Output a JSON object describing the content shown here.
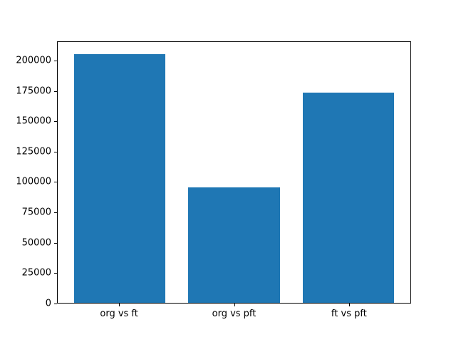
{
  "chart_data": {
    "type": "bar",
    "categories": [
      "org vs ft",
      "org vs pft",
      "ft vs pft"
    ],
    "values": [
      205500,
      95500,
      174000
    ],
    "title": "",
    "xlabel": "",
    "ylabel": "",
    "ylim": [
      0,
      215800
    ],
    "xlim": [
      -0.54,
      2.54
    ],
    "bar_width": 0.8,
    "yticks": [
      0,
      25000,
      50000,
      75000,
      100000,
      125000,
      150000,
      175000,
      200000
    ],
    "ytick_labels": [
      "0",
      "25000",
      "50000",
      "75000",
      "100000",
      "125000",
      "150000",
      "175000",
      "200000"
    ],
    "grid": false,
    "legend": null,
    "bar_color": "#1f77b4",
    "axis_color": "#000000",
    "background_color": "#ffffff"
  }
}
